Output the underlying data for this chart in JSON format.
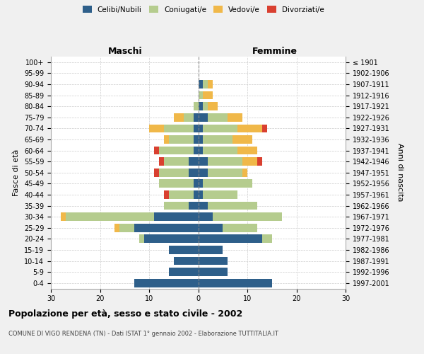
{
  "age_groups": [
    "100+",
    "95-99",
    "90-94",
    "85-89",
    "80-84",
    "75-79",
    "70-74",
    "65-69",
    "60-64",
    "55-59",
    "50-54",
    "45-49",
    "40-44",
    "35-39",
    "30-34",
    "25-29",
    "20-24",
    "15-19",
    "10-14",
    "5-9",
    "0-4"
  ],
  "birth_years": [
    "≤ 1901",
    "1902-1906",
    "1907-1911",
    "1912-1916",
    "1917-1921",
    "1922-1926",
    "1927-1931",
    "1932-1936",
    "1937-1941",
    "1942-1946",
    "1947-1951",
    "1952-1956",
    "1957-1961",
    "1962-1966",
    "1967-1971",
    "1972-1976",
    "1977-1981",
    "1982-1986",
    "1987-1991",
    "1992-1996",
    "1997-2001"
  ],
  "male_celibi": [
    0,
    0,
    0,
    0,
    0,
    1,
    1,
    1,
    1,
    2,
    2,
    1,
    1,
    2,
    9,
    13,
    11,
    6,
    5,
    6,
    13
  ],
  "male_coniugati": [
    0,
    0,
    0,
    0,
    1,
    2,
    6,
    5,
    7,
    5,
    6,
    7,
    5,
    5,
    18,
    3,
    1,
    0,
    0,
    0,
    0
  ],
  "male_vedovi": [
    0,
    0,
    0,
    0,
    0,
    2,
    3,
    1,
    0,
    0,
    0,
    0,
    0,
    0,
    1,
    1,
    0,
    0,
    0,
    0,
    0
  ],
  "male_divorziati": [
    0,
    0,
    0,
    0,
    0,
    0,
    0,
    0,
    1,
    1,
    1,
    0,
    1,
    0,
    0,
    0,
    0,
    0,
    0,
    0,
    0
  ],
  "female_celibi": [
    0,
    0,
    1,
    0,
    1,
    2,
    1,
    1,
    1,
    2,
    2,
    1,
    1,
    2,
    3,
    5,
    13,
    5,
    6,
    6,
    15
  ],
  "female_coniugati": [
    0,
    0,
    1,
    1,
    1,
    4,
    7,
    6,
    7,
    7,
    7,
    10,
    7,
    10,
    14,
    7,
    2,
    0,
    0,
    0,
    0
  ],
  "female_vedovi": [
    0,
    0,
    1,
    2,
    2,
    3,
    5,
    4,
    4,
    3,
    1,
    0,
    0,
    0,
    0,
    0,
    0,
    0,
    0,
    0,
    0
  ],
  "female_divorziati": [
    0,
    0,
    0,
    0,
    0,
    0,
    1,
    0,
    0,
    1,
    0,
    0,
    0,
    0,
    0,
    0,
    0,
    0,
    0,
    0,
    0
  ],
  "colors": {
    "celibi": "#2e5f8a",
    "coniugati": "#b5cc8e",
    "vedovi": "#f0b849",
    "divorziati": "#d94030"
  },
  "title": "Popolazione per età, sesso e stato civile - 2002",
  "subtitle": "COMUNE DI VIGO RENDENA (TN) - Dati ISTAT 1° gennaio 2002 - Elaborazione TUTTITALIA.IT",
  "xlabel_left": "Maschi",
  "xlabel_right": "Femmine",
  "ylabel_left": "Fasce di età",
  "ylabel_right": "Anni di nascita",
  "xlim": 30,
  "bg_color": "#f0f0f0",
  "plot_bg": "#ffffff",
  "grid_color": "#cccccc"
}
